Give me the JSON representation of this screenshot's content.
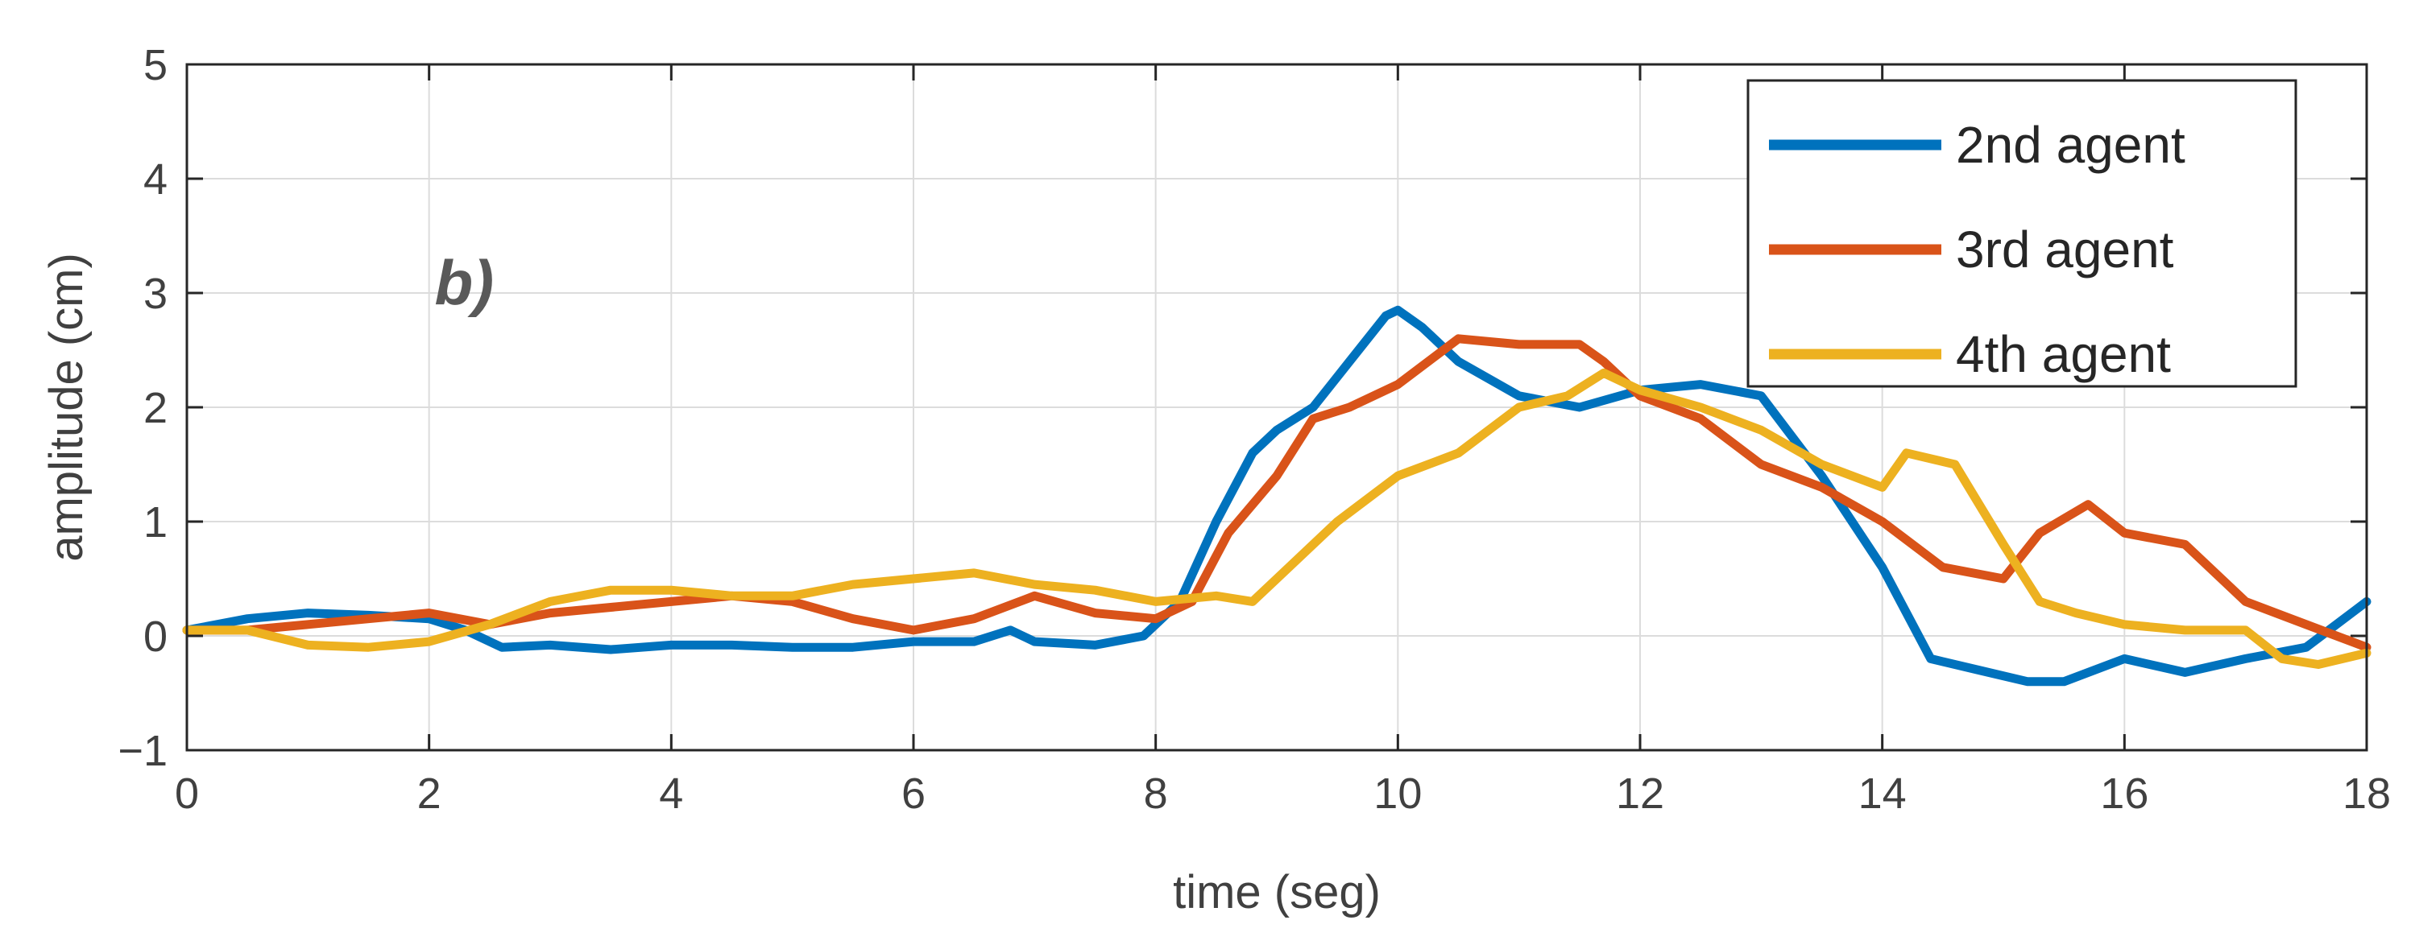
{
  "chart_data": {
    "type": "line",
    "title": "",
    "xlabel": "time (seg)",
    "ylabel": "amplitude (cm)",
    "xlim": [
      0,
      18
    ],
    "ylim": [
      -1,
      5
    ],
    "xticks": [
      0,
      2,
      4,
      6,
      8,
      10,
      12,
      14,
      16,
      18
    ],
    "yticks": [
      -1,
      0,
      1,
      2,
      3,
      4,
      5
    ],
    "grid": true,
    "legend_position": "top-right",
    "annotation": "b)",
    "series": [
      {
        "name": "2nd agent",
        "color": "#0072BD",
        "x": [
          0,
          0.5,
          1,
          1.5,
          2,
          2.3,
          2.6,
          3,
          3.5,
          4,
          4.5,
          5,
          5.5,
          6,
          6.5,
          6.8,
          7,
          7.5,
          7.9,
          8.2,
          8.5,
          8.8,
          9,
          9.3,
          9.6,
          9.9,
          10,
          10.2,
          10.5,
          11,
          11.5,
          12,
          12.5,
          13,
          13.5,
          14,
          14.4,
          14.8,
          15.2,
          15.5,
          16,
          16.5,
          17,
          17.5,
          18
        ],
        "y": [
          0.05,
          0.15,
          0.2,
          0.18,
          0.15,
          0.05,
          -0.1,
          -0.08,
          -0.12,
          -0.08,
          -0.08,
          -0.1,
          -0.1,
          -0.05,
          -0.05,
          0.05,
          -0.05,
          -0.08,
          0,
          0.3,
          1.0,
          1.6,
          1.8,
          2.0,
          2.4,
          2.8,
          2.85,
          2.7,
          2.4,
          2.1,
          2.0,
          2.15,
          2.2,
          2.1,
          1.4,
          0.6,
          -0.2,
          -0.3,
          -0.4,
          -0.4,
          -0.2,
          -0.32,
          -0.2,
          -0.1,
          0.3
        ]
      },
      {
        "name": "3rd agent",
        "color": "#D95319",
        "x": [
          0,
          0.5,
          1,
          1.5,
          2,
          2.5,
          3,
          3.5,
          4,
          4.5,
          5,
          5.5,
          6,
          6.5,
          7,
          7.5,
          8,
          8.3,
          8.6,
          9,
          9.3,
          9.6,
          10,
          10.5,
          11,
          11.5,
          11.7,
          12,
          12.5,
          13,
          13.5,
          14,
          14.5,
          15,
          15.3,
          15.7,
          16,
          16.5,
          17,
          17.5,
          18
        ],
        "y": [
          0.05,
          0.05,
          0.1,
          0.15,
          0.2,
          0.1,
          0.2,
          0.25,
          0.3,
          0.35,
          0.3,
          0.15,
          0.05,
          0.15,
          0.35,
          0.2,
          0.15,
          0.3,
          0.9,
          1.4,
          1.9,
          2.0,
          2.2,
          2.6,
          2.55,
          2.55,
          2.4,
          2.1,
          1.9,
          1.5,
          1.3,
          1.0,
          0.6,
          0.5,
          0.9,
          1.15,
          0.9,
          0.8,
          0.3,
          0.1,
          -0.1
        ]
      },
      {
        "name": "4th agent",
        "color": "#EDB120",
        "x": [
          0,
          0.5,
          1,
          1.5,
          2,
          2.5,
          3,
          3.5,
          4,
          4.5,
          5,
          5.5,
          6,
          6.5,
          7,
          7.5,
          8,
          8.5,
          8.8,
          9,
          9.5,
          10,
          10.5,
          11,
          11.4,
          11.7,
          12,
          12.5,
          13,
          13.5,
          14,
          14.2,
          14.6,
          15,
          15.3,
          15.6,
          16,
          16.5,
          17,
          17.3,
          17.6,
          18
        ],
        "y": [
          0.05,
          0.05,
          -0.08,
          -0.1,
          -0.05,
          0.1,
          0.3,
          0.4,
          0.4,
          0.35,
          0.35,
          0.45,
          0.5,
          0.55,
          0.45,
          0.4,
          0.3,
          0.35,
          0.3,
          0.5,
          1.0,
          1.4,
          1.6,
          2.0,
          2.1,
          2.3,
          2.15,
          2.0,
          1.8,
          1.5,
          1.3,
          1.6,
          1.5,
          0.8,
          0.3,
          0.2,
          0.1,
          0.05,
          0.05,
          -0.2,
          -0.25,
          -0.15
        ]
      }
    ]
  }
}
